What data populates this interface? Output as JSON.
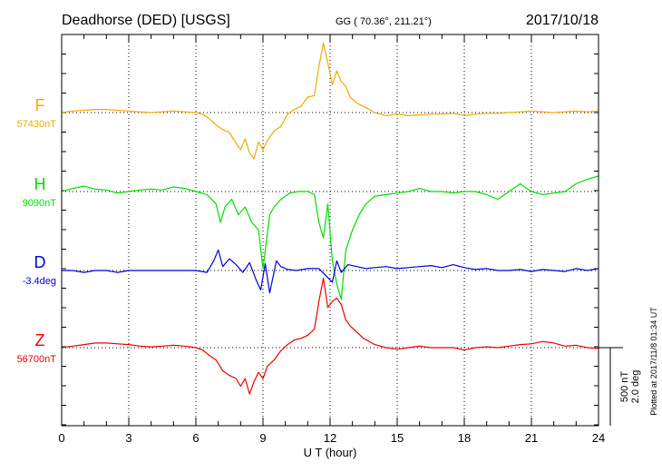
{
  "header": {
    "station": "Deadhorse (DED)  [USGS]",
    "coords": "GG ( 70.36°, 211.21°)",
    "date": "2017/10/18"
  },
  "plotted_note": "Plotted at 2017/11/8 01:34 UT",
  "scale": {
    "line1": "500 nT",
    "line2": "2.0 deg"
  },
  "chart_data": {
    "type": "line",
    "title": "Deadhorse (DED)  [USGS]",
    "xlabel": "U T (hour)",
    "xlim": [
      0,
      24
    ],
    "xticks": [
      "0",
      "3",
      "6",
      "9",
      "12",
      "15",
      "18",
      "21",
      "24"
    ],
    "grid": true,
    "series": [
      {
        "name": "F",
        "baseline_label": "57430nT",
        "color": "#f2a900",
        "x": [
          0,
          0.5,
          1,
          1.5,
          2,
          2.5,
          3,
          3.5,
          4,
          4.5,
          5,
          5.5,
          6,
          6.3,
          6.6,
          6.9,
          7.2,
          7.5,
          7.8,
          8.0,
          8.2,
          8.4,
          8.6,
          8.8,
          9.0,
          9.2,
          9.5,
          9.8,
          10.1,
          10.4,
          10.7,
          11.0,
          11.3,
          11.5,
          11.7,
          11.9,
          12.1,
          12.3,
          12.5,
          12.7,
          12.9,
          13.2,
          13.5,
          14,
          14.5,
          15,
          15.5,
          16,
          16.5,
          17,
          17.5,
          18,
          18.5,
          19,
          19.5,
          20,
          20.5,
          21,
          21.5,
          22,
          22.5,
          23,
          23.5,
          24
        ],
        "values": [
          0,
          10,
          15,
          20,
          20,
          15,
          10,
          5,
          0,
          5,
          10,
          5,
          0,
          -10,
          -40,
          -80,
          -110,
          -130,
          -200,
          -240,
          -170,
          -260,
          -300,
          -190,
          -240,
          -180,
          -120,
          -90,
          -10,
          20,
          40,
          100,
          110,
          300,
          450,
          320,
          180,
          270,
          200,
          170,
          100,
          60,
          40,
          0,
          -20,
          -10,
          -20,
          -15,
          -10,
          -10,
          -5,
          -20,
          -10,
          -5,
          -5,
          0,
          5,
          10,
          5,
          0,
          5,
          10,
          5,
          10
        ]
      },
      {
        "name": "H",
        "baseline_label": "9090nT",
        "color": "#00dd00",
        "x": [
          0,
          0.5,
          1,
          1.5,
          2,
          2.5,
          3,
          3.5,
          4,
          4.5,
          5,
          5.5,
          6,
          6.5,
          6.9,
          7.1,
          7.3,
          7.6,
          7.9,
          8.2,
          8.5,
          8.8,
          9.0,
          9.3,
          9.5,
          9.8,
          10.2,
          10.6,
          11.0,
          11.3,
          11.5,
          11.7,
          11.9,
          12.1,
          12.3,
          12.5,
          12.7,
          13.0,
          13.3,
          13.6,
          14,
          14.5,
          15,
          15.5,
          16,
          16.5,
          17,
          17.5,
          18,
          18.5,
          19,
          19.5,
          20,
          20.5,
          21,
          21.5,
          22,
          22.5,
          23,
          23.5,
          24
        ],
        "values": [
          0,
          20,
          35,
          15,
          10,
          -10,
          0,
          10,
          15,
          10,
          30,
          20,
          0,
          -20,
          -80,
          -200,
          -100,
          -50,
          -150,
          -100,
          -200,
          -250,
          -500,
          -150,
          -100,
          -50,
          -10,
          0,
          0,
          -20,
          -200,
          -300,
          -80,
          -450,
          -600,
          -700,
          -380,
          -250,
          -150,
          -80,
          -30,
          -20,
          -10,
          0,
          20,
          0,
          0,
          -10,
          0,
          0,
          -20,
          -50,
          0,
          50,
          0,
          -20,
          -10,
          0,
          50,
          80,
          100
        ]
      },
      {
        "name": "D",
        "baseline_label": "-3.4deg",
        "color": "#0000dd",
        "x": [
          0,
          0.5,
          1,
          1.5,
          2,
          2.5,
          3,
          3.5,
          4,
          4.5,
          5,
          5.5,
          6,
          6.5,
          6.8,
          7.0,
          7.2,
          7.5,
          7.8,
          8.1,
          8.4,
          8.7,
          8.9,
          9.1,
          9.3,
          9.6,
          9.8,
          10.1,
          10.5,
          11,
          11.5,
          12.1,
          12.3,
          12.5,
          12.8,
          13.2,
          13.6,
          14,
          14.5,
          15,
          15.5,
          16,
          16.5,
          17,
          17.5,
          18,
          18.5,
          19,
          19.5,
          20,
          20.5,
          21,
          21.5,
          22,
          22.5,
          23,
          23.5,
          24
        ],
        "values": [
          0,
          0,
          -0.1,
          0,
          0,
          -0.1,
          0,
          0,
          0,
          0,
          0,
          0,
          0,
          -0.1,
          0.5,
          1.05,
          0.2,
          0.6,
          0.3,
          -0.1,
          0.4,
          -0.5,
          -1.0,
          0.35,
          -1.15,
          0.5,
          0.2,
          0.05,
          0,
          0.1,
          0.1,
          -0.6,
          0.5,
          -0.1,
          0.3,
          0.2,
          0.1,
          0.15,
          0.2,
          0.1,
          0.15,
          0.2,
          0.25,
          0.15,
          0.3,
          0.15,
          0.05,
          0.1,
          0,
          0,
          0.05,
          -0.05,
          0.05,
          0,
          -0.05,
          0.1,
          0,
          0.1
        ]
      },
      {
        "name": "Z",
        "baseline_label": "56700nT",
        "color": "#ee0000",
        "x": [
          0,
          0.5,
          1,
          1.5,
          2,
          2.5,
          3,
          3.5,
          4,
          4.5,
          5,
          5.5,
          6,
          6.3,
          6.6,
          6.9,
          7.2,
          7.5,
          7.8,
          8.0,
          8.2,
          8.4,
          8.6,
          8.8,
          9.0,
          9.2,
          9.5,
          9.8,
          10.1,
          10.4,
          10.7,
          11.0,
          11.3,
          11.5,
          11.7,
          11.9,
          12.1,
          12.3,
          12.5,
          12.7,
          12.9,
          13.2,
          13.5,
          14,
          14.5,
          15,
          15.5,
          16,
          16.5,
          17,
          17.5,
          18,
          18.5,
          19,
          19.5,
          20,
          20.5,
          21,
          21.5,
          22,
          22.5,
          23,
          23.5,
          24
        ],
        "values": [
          0,
          10,
          20,
          30,
          30,
          25,
          20,
          10,
          5,
          10,
          15,
          10,
          0,
          -15,
          -50,
          -80,
          -150,
          -180,
          -200,
          -250,
          -200,
          -300,
          -220,
          -160,
          -200,
          -120,
          -80,
          -20,
          20,
          50,
          60,
          80,
          120,
          300,
          450,
          260,
          300,
          320,
          280,
          180,
          140,
          100,
          60,
          20,
          0,
          -10,
          0,
          10,
          0,
          0,
          0,
          -15,
          0,
          5,
          0,
          10,
          20,
          25,
          40,
          30,
          10,
          15,
          0,
          -5
        ]
      }
    ]
  }
}
